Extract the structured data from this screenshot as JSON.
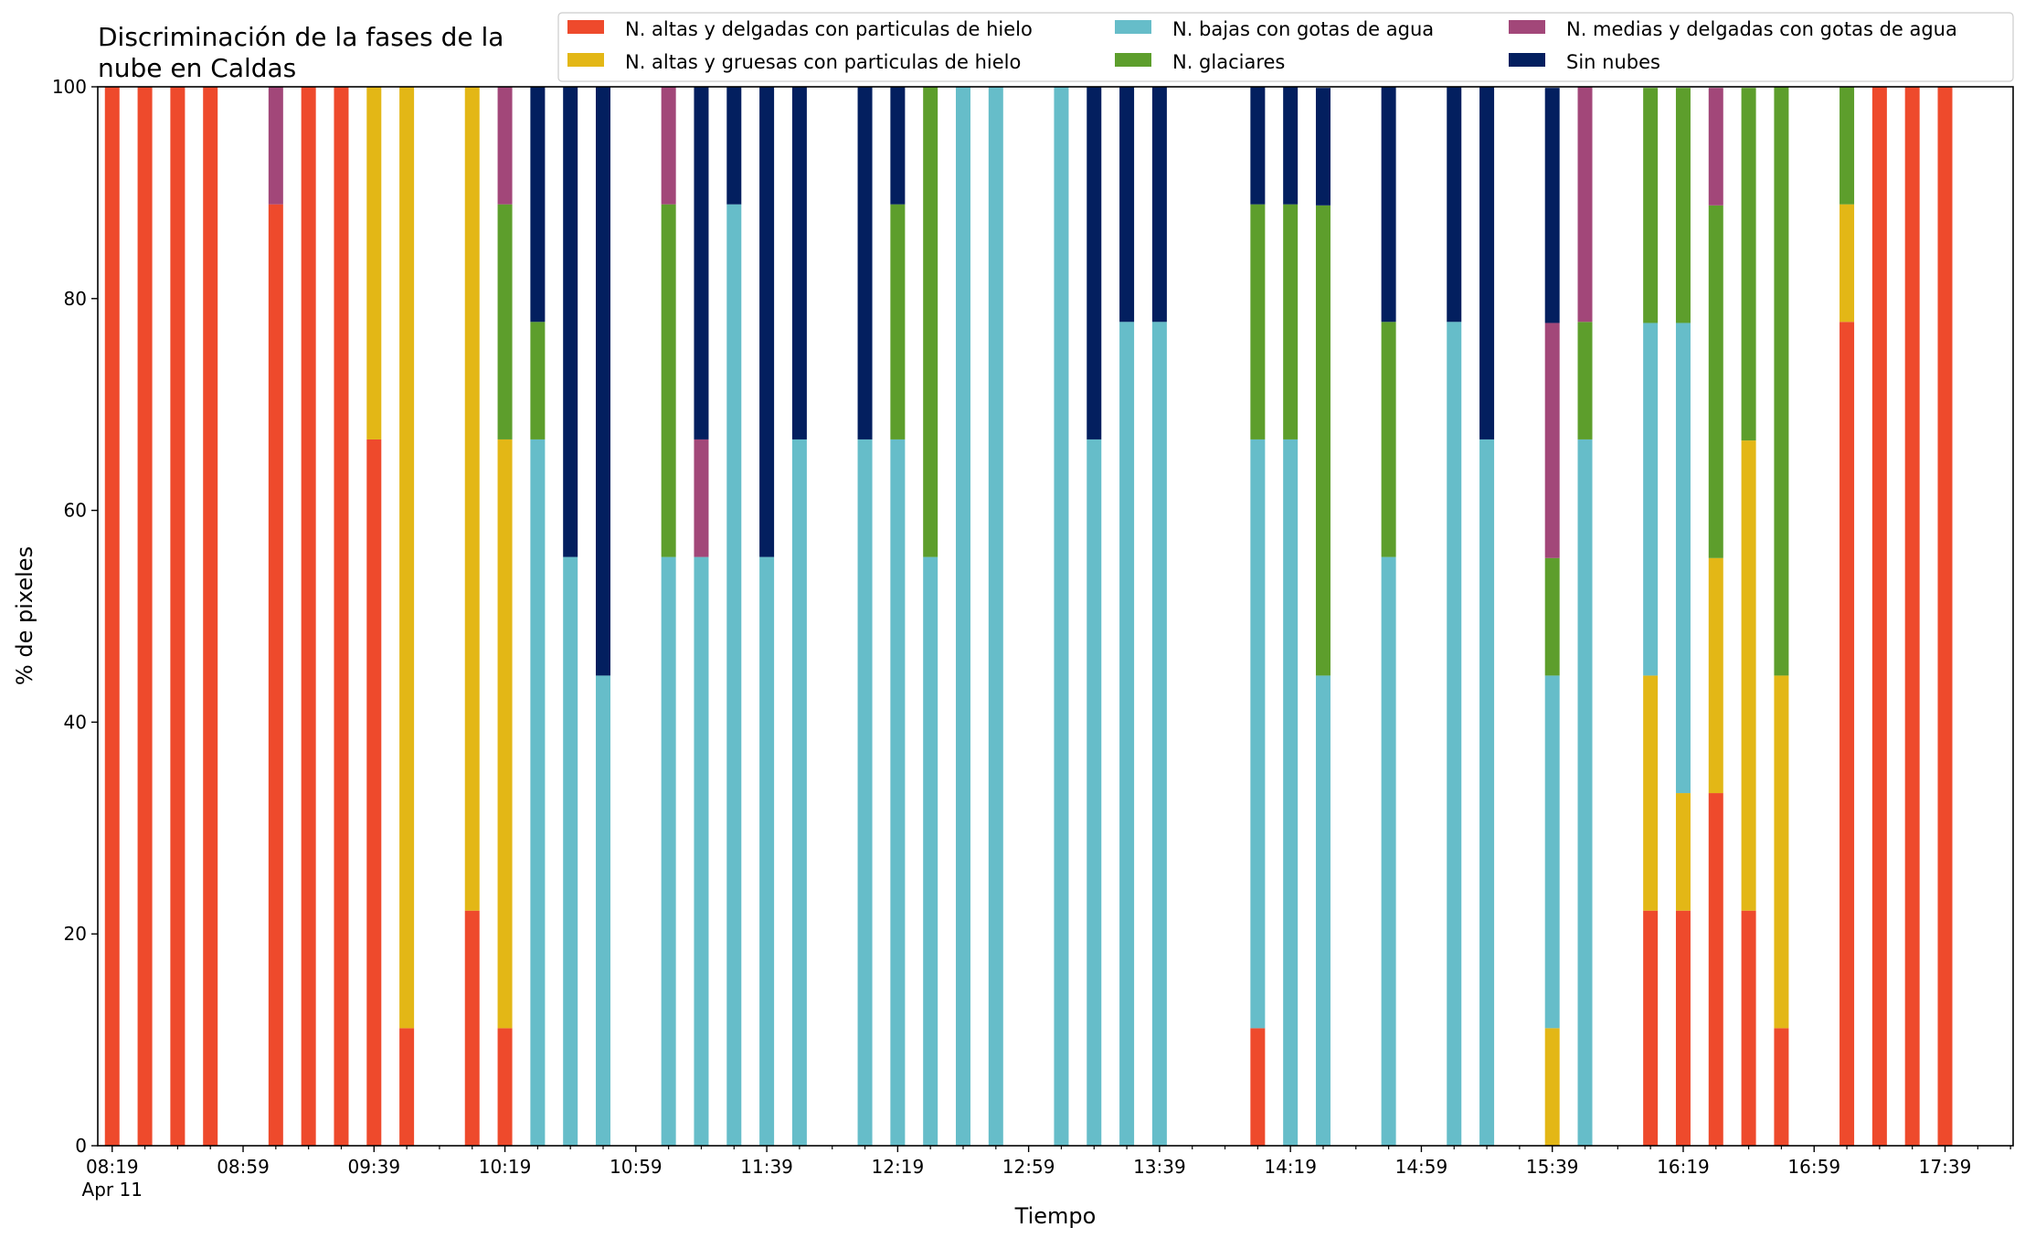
{
  "chart_data": {
    "type": "bar",
    "stacked": true,
    "title": "Discriminación de la fases de la nube en Caldas",
    "title_lines": [
      "Discriminación de la fases de la",
      "nube en Caldas"
    ],
    "xlabel": "Tiempo",
    "ylabel": "% de pixeles",
    "ylim": [
      0,
      100
    ],
    "y_ticks": [
      0,
      20,
      40,
      60,
      80,
      100
    ],
    "x_range_minutes_from_0819": [
      -4.4,
      580.8
    ],
    "x_ticks_major": [
      {
        "time": "08:19",
        "sub": "Apr 11"
      },
      {
        "time": "08:59",
        "sub": ""
      },
      {
        "time": "09:39",
        "sub": ""
      },
      {
        "time": "10:19",
        "sub": ""
      },
      {
        "time": "10:59",
        "sub": ""
      },
      {
        "time": "11:39",
        "sub": ""
      },
      {
        "time": "12:19",
        "sub": ""
      },
      {
        "time": "12:59",
        "sub": ""
      },
      {
        "time": "13:39",
        "sub": ""
      },
      {
        "time": "14:19",
        "sub": ""
      },
      {
        "time": "14:59",
        "sub": ""
      },
      {
        "time": "15:39",
        "sub": ""
      },
      {
        "time": "16:19",
        "sub": ""
      },
      {
        "time": "16:59",
        "sub": ""
      },
      {
        "time": "17:39",
        "sub": ""
      }
    ],
    "x_ticks_minor": [
      "08:29",
      "08:39",
      "08:49",
      "09:09",
      "09:19",
      "09:29",
      "09:49",
      "09:59",
      "10:09",
      "10:29",
      "10:39",
      "10:49",
      "11:09",
      "11:19",
      "11:29",
      "11:49",
      "11:59",
      "12:09",
      "12:29",
      "12:39",
      "12:49",
      "13:09",
      "13:19",
      "13:29",
      "13:49",
      "13:59",
      "14:09",
      "14:29",
      "14:39",
      "14:49",
      "15:09",
      "15:19",
      "15:29",
      "15:49",
      "15:59",
      "16:09",
      "16:29",
      "16:39",
      "16:49",
      "17:09",
      "17:19",
      "17:29",
      "17:49",
      "17:59"
    ],
    "grid": false,
    "legend_position": "top-right",
    "legend_columns": 3,
    "series": [
      {
        "name": "N. altas y delgadas con particulas de hielo",
        "color": "#ee4a2c"
      },
      {
        "name": "N. altas y gruesas con particulas de hielo",
        "color": "#e3b716"
      },
      {
        "name": "N. bajas con gotas de agua",
        "color": "#66bdc9"
      },
      {
        "name": "N. glaciares",
        "color": "#5d9e2c"
      },
      {
        "name": "N. medias y delgadas con gotas de agua",
        "color": "#a24779"
      },
      {
        "name": "Sin nubes",
        "color": "#031f5f"
      }
    ],
    "bars": [
      {
        "time": "08:19",
        "values": [
          100,
          0,
          0,
          0,
          0,
          0
        ]
      },
      {
        "time": "08:29",
        "values": [
          100,
          0,
          0,
          0,
          0,
          0
        ]
      },
      {
        "time": "08:39",
        "values": [
          100,
          0,
          0,
          0,
          0,
          0
        ]
      },
      {
        "time": "08:49",
        "values": [
          100,
          0,
          0,
          0,
          0,
          0
        ]
      },
      {
        "time": "09:09",
        "values": [
          88.9,
          0,
          0,
          0,
          11.1,
          0
        ]
      },
      {
        "time": "09:19",
        "values": [
          100,
          0,
          0,
          0,
          0,
          0
        ]
      },
      {
        "time": "09:29",
        "values": [
          100,
          0,
          0,
          0,
          0,
          0
        ]
      },
      {
        "time": "09:39",
        "values": [
          66.7,
          33.3,
          0,
          0,
          0,
          0
        ]
      },
      {
        "time": "09:49",
        "values": [
          11.1,
          88.9,
          0,
          0,
          0,
          0
        ]
      },
      {
        "time": "10:09",
        "values": [
          22.2,
          77.8,
          0,
          0,
          0,
          0
        ]
      },
      {
        "time": "10:19",
        "values": [
          11.1,
          55.6,
          0,
          22.2,
          11.1,
          0
        ]
      },
      {
        "time": "10:29",
        "values": [
          0,
          0,
          66.7,
          11.1,
          0,
          22.2
        ]
      },
      {
        "time": "10:39",
        "values": [
          0,
          0,
          55.6,
          0,
          0,
          44.4
        ]
      },
      {
        "time": "10:49",
        "values": [
          0,
          0,
          44.4,
          0,
          0,
          55.6
        ]
      },
      {
        "time": "11:09",
        "values": [
          0,
          0,
          55.6,
          33.3,
          11.1,
          0
        ]
      },
      {
        "time": "11:19",
        "values": [
          0,
          0,
          55.6,
          0,
          11.1,
          33.3
        ]
      },
      {
        "time": "11:29",
        "values": [
          0,
          0,
          88.9,
          0,
          0,
          11.1
        ]
      },
      {
        "time": "11:39",
        "values": [
          0,
          0,
          55.6,
          0,
          0,
          44.4
        ]
      },
      {
        "time": "11:49",
        "values": [
          0,
          0,
          66.7,
          0,
          0,
          33.3
        ]
      },
      {
        "time": "12:09",
        "values": [
          0,
          0,
          66.7,
          0,
          0,
          33.3
        ]
      },
      {
        "time": "12:19",
        "values": [
          0,
          0,
          66.7,
          22.2,
          0,
          11.1
        ]
      },
      {
        "time": "12:29",
        "values": [
          0,
          0,
          55.6,
          44.4,
          0,
          0
        ]
      },
      {
        "time": "12:39",
        "values": [
          0,
          0,
          100,
          0,
          0,
          0
        ]
      },
      {
        "time": "12:49",
        "values": [
          0,
          0,
          100,
          0,
          0,
          0
        ]
      },
      {
        "time": "13:09",
        "values": [
          0,
          0,
          100,
          0,
          0,
          0
        ]
      },
      {
        "time": "13:19",
        "values": [
          0,
          0,
          66.7,
          0,
          0,
          33.3
        ]
      },
      {
        "time": "13:29",
        "values": [
          0,
          0,
          77.8,
          0,
          0,
          22.2
        ]
      },
      {
        "time": "13:39",
        "values": [
          0,
          0,
          77.8,
          0,
          0,
          22.2
        ]
      },
      {
        "time": "14:09",
        "values": [
          11.1,
          0,
          55.6,
          22.2,
          0,
          11.1
        ]
      },
      {
        "time": "14:19",
        "values": [
          0,
          0,
          66.7,
          22.2,
          0,
          11.1
        ]
      },
      {
        "time": "14:29",
        "values": [
          0,
          0,
          44.4,
          44.4,
          0,
          11.1
        ]
      },
      {
        "time": "14:49",
        "values": [
          0,
          0,
          55.6,
          22.2,
          0,
          22.2
        ]
      },
      {
        "time": "15:09",
        "values": [
          0,
          0,
          77.8,
          0,
          0,
          22.2
        ]
      },
      {
        "time": "15:19",
        "values": [
          0,
          0,
          66.7,
          0,
          0,
          33.3
        ]
      },
      {
        "time": "15:39",
        "values": [
          0,
          11.1,
          33.3,
          11.1,
          22.2,
          22.2
        ]
      },
      {
        "time": "15:49",
        "values": [
          0,
          0,
          66.7,
          11.1,
          22.2,
          0
        ]
      },
      {
        "time": "16:09",
        "values": [
          22.2,
          22.2,
          33.3,
          22.2,
          0,
          0
        ]
      },
      {
        "time": "16:19",
        "values": [
          22.2,
          11.1,
          44.4,
          22.2,
          0,
          0
        ]
      },
      {
        "time": "16:29",
        "values": [
          33.3,
          22.2,
          0,
          33.3,
          11.1,
          0
        ]
      },
      {
        "time": "16:39",
        "values": [
          22.2,
          44.4,
          0,
          33.3,
          0,
          0
        ]
      },
      {
        "time": "16:49",
        "values": [
          11.1,
          33.3,
          0,
          55.6,
          0,
          0
        ]
      },
      {
        "time": "17:09",
        "values": [
          77.8,
          11.1,
          0,
          11.1,
          0,
          0
        ]
      },
      {
        "time": "17:19",
        "values": [
          100,
          0,
          0,
          0,
          0,
          0
        ]
      },
      {
        "time": "17:29",
        "values": [
          100,
          0,
          0,
          0,
          0,
          0
        ]
      },
      {
        "time": "17:39",
        "values": [
          100,
          0,
          0,
          0,
          0,
          0
        ]
      }
    ]
  }
}
